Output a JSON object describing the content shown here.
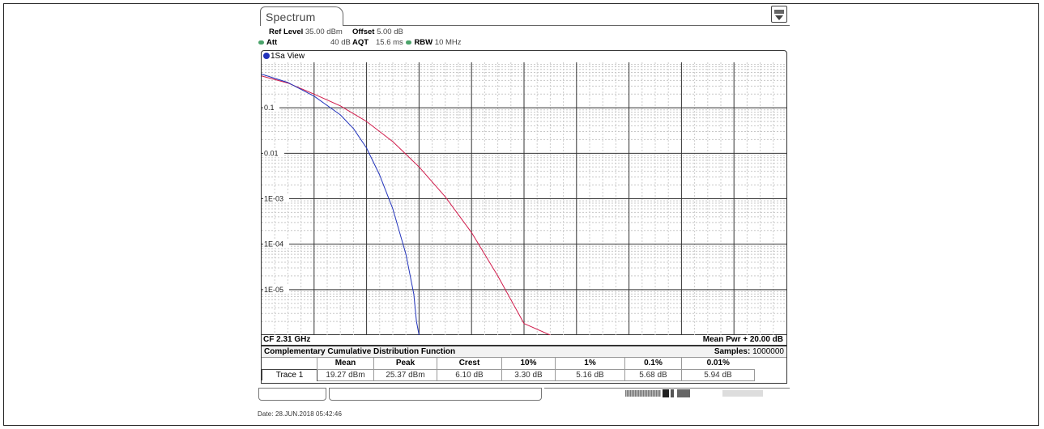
{
  "tab": {
    "label": "Spectrum"
  },
  "params": {
    "ref_level_label": "Ref Level",
    "ref_level_value": "35.00 dBm",
    "offset_label": "Offset",
    "offset_value": "5.00 dB",
    "att_label": "Att",
    "att_value": "40 dB",
    "aqt_label": "AQT",
    "aqt_value": "15.6 ms",
    "rbw_label": "RBW",
    "rbw_value": "10 MHz"
  },
  "window": {
    "title": "1Sa View"
  },
  "chart_data": {
    "type": "line",
    "y_scale": "log",
    "yticks": [
      "0.1",
      "0.01",
      "1E-03",
      "1E-04",
      "1E-05"
    ],
    "ylim": [
      1e-06,
      1
    ],
    "xlim": [
      0,
      20
    ],
    "x_unit": "dB above mean power",
    "series": [
      {
        "color": "#d01a4a",
        "x": [
          0,
          1,
          2,
          3,
          4,
          5,
          6,
          7,
          8,
          9,
          10,
          11
        ],
        "y": [
          0.5,
          0.35,
          0.2,
          0.11,
          0.05,
          0.018,
          0.005,
          0.0011,
          0.00018,
          2e-05,
          1.8e-06,
          1e-06
        ]
      },
      {
        "color": "#2233bb",
        "x": [
          0,
          1,
          2,
          3,
          3.5,
          4,
          4.5,
          5,
          5.5,
          5.8,
          5.9,
          6.0
        ],
        "y": [
          0.55,
          0.36,
          0.18,
          0.07,
          0.035,
          0.013,
          0.0033,
          0.0006,
          6e-05,
          8e-06,
          2e-06,
          1e-06
        ]
      }
    ]
  },
  "footer": {
    "cf": "CF 2.31 GHz",
    "mean_pwr": "Mean Pwr + 20.00 dB"
  },
  "ccdf": {
    "title": "Complementary Cumulative Distribution Function",
    "samples_label": "Samples:",
    "samples_value": "1000000",
    "columns": [
      "Mean",
      "Peak",
      "Crest",
      "10%",
      "1%",
      "0.1%",
      "0.01%"
    ],
    "trace_label": "Trace 1",
    "values": [
      "19.27 dBm",
      "25.37 dBm",
      "6.10 dB",
      "3.30 dB",
      "5.16 dB",
      "5.68 dB",
      "5.94 dB"
    ]
  },
  "date": "Date: 28.JUN.2018  05:42:46"
}
